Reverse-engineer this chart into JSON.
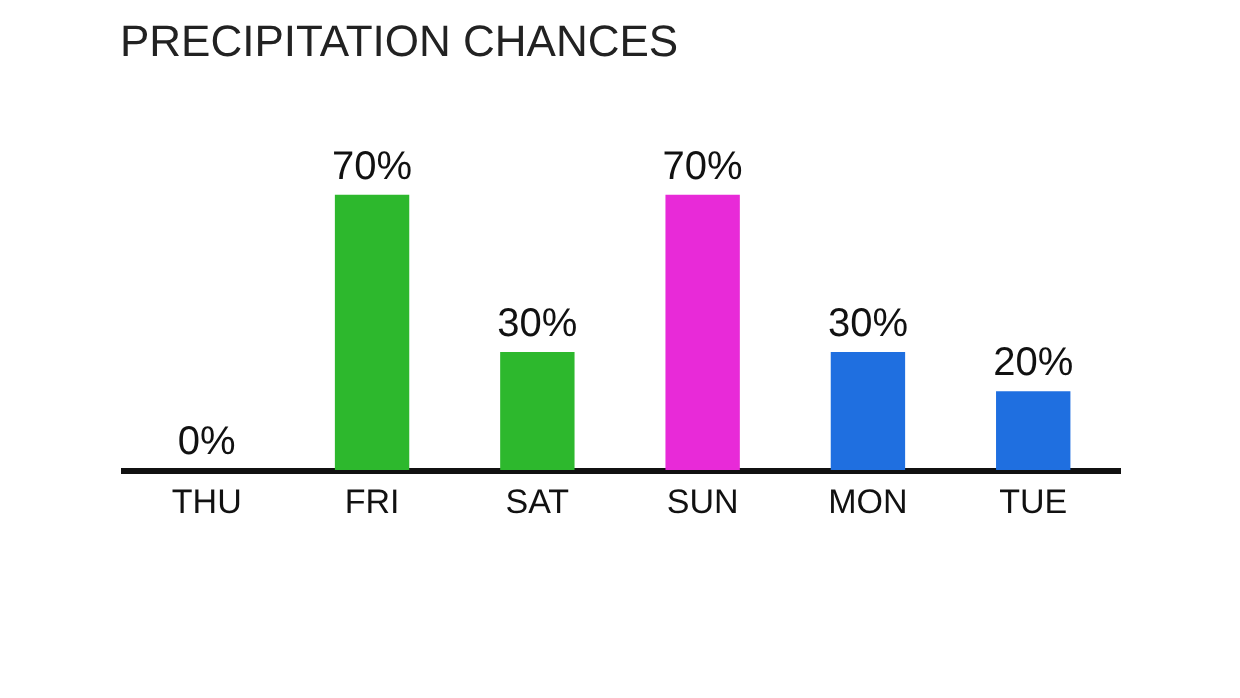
{
  "chart_data": {
    "type": "bar",
    "title": "PRECIPITATION CHANCES",
    "categories": [
      "THU",
      "FRI",
      "SAT",
      "SUN",
      "MON",
      "TUE"
    ],
    "values": [
      0,
      70,
      30,
      70,
      30,
      20
    ],
    "value_labels": [
      "0%",
      "70%",
      "30%",
      "70%",
      "30%",
      "20%"
    ],
    "colors": [
      "#2db82d",
      "#2db82d",
      "#2db82d",
      "#e82ad8",
      "#1f6fe0",
      "#1f6fe0"
    ],
    "grid": false
  }
}
